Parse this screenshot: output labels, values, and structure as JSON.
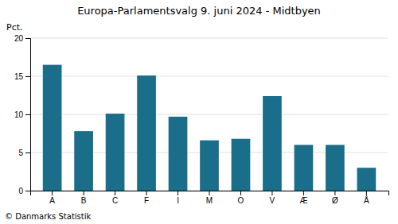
{
  "chart_data": {
    "type": "bar",
    "title": "Europa-Parlamentsvalg 9. juni 2024 - Midtbyen",
    "categories": [
      "A",
      "B",
      "C",
      "F",
      "I",
      "M",
      "O",
      "V",
      "Æ",
      "Ø",
      "Å"
    ],
    "values": [
      16.5,
      7.8,
      10.1,
      15.1,
      9.7,
      6.6,
      6.8,
      12.4,
      6.0,
      6.0,
      3.0
    ],
    "color": "#1a6e8a",
    "ylabel": "Pct.",
    "footer": "© Danmarks Statistik",
    "ylim": [
      0,
      20
    ],
    "yticks": [
      0,
      5,
      10,
      15,
      20
    ],
    "grid": true
  }
}
